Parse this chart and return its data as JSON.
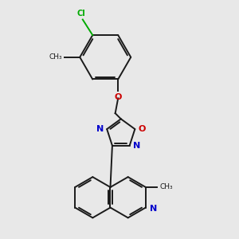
{
  "background_color": "#e8e8e8",
  "bond_color": "#1a1a1a",
  "heteroatom_colors": {
    "N": "#0000cc",
    "O": "#cc0000",
    "Cl": "#00aa00"
  },
  "lw": 1.4,
  "fs": 8.0,
  "fs_small": 7.0
}
